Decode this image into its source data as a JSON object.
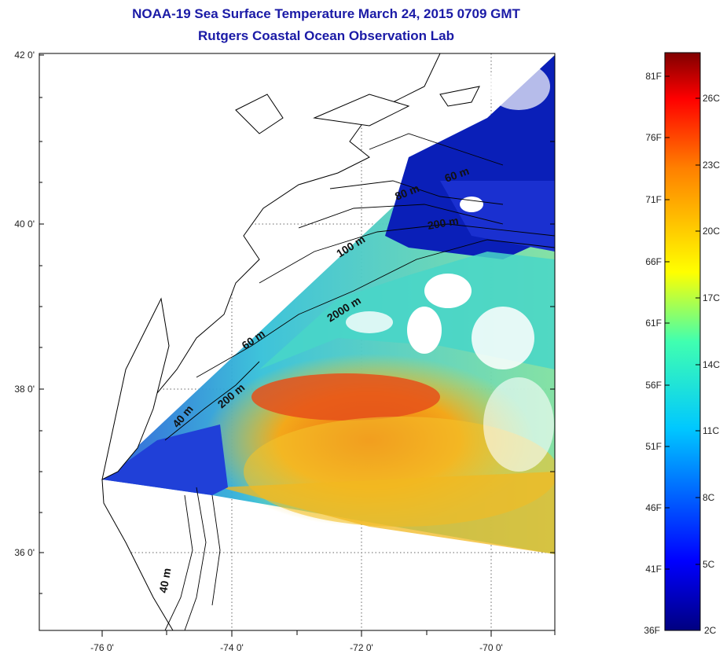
{
  "title": {
    "line1": "NOAA-19 Sea Surface Temperature March 24, 2015 0709 GMT",
    "line2": "Rutgers Coastal Ocean Observation Lab"
  },
  "axes": {
    "lat_ticks": [
      "42 0'",
      "40 0'",
      "38 0'",
      "36 0'"
    ],
    "lon_ticks": [
      "-76 0'",
      "-74 0'",
      "-72 0'",
      "-70 0'"
    ]
  },
  "contour_labels": [
    "60 m",
    "80 m",
    "200 m",
    "100 m",
    "2000 m",
    "60 m",
    "200 m",
    "40 m",
    "40 m"
  ],
  "colorbar": {
    "fahrenheit": [
      "81F",
      "76F",
      "71F",
      "66F",
      "61F",
      "56F",
      "51F",
      "46F",
      "41F",
      "36F"
    ],
    "celsius": [
      "26C",
      "23C",
      "20C",
      "17C",
      "14C",
      "11C",
      "8C",
      "5C",
      "2C"
    ]
  },
  "colors": {
    "title": "#1a1aa6",
    "cold": "#0a1fb8",
    "warm": "#e33b10"
  }
}
